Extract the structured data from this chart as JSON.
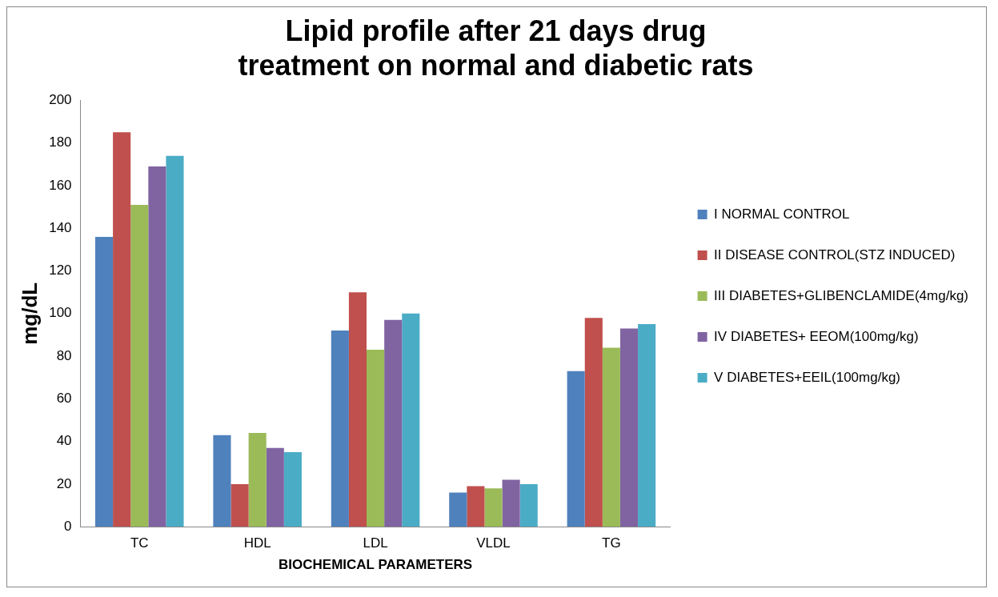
{
  "chart_data": {
    "type": "bar",
    "title": "Lipid profile after 21 days drug treatment on normal and diabetic rats",
    "xlabel": "BIOCHEMICAL PARAMETERS",
    "ylabel": "mg/dL",
    "categories": [
      "TC",
      "HDL",
      "LDL",
      "VLDL",
      "TG"
    ],
    "series": [
      {
        "name": "I NORMAL CONTROL",
        "color": "#4f81bd",
        "values": [
          136,
          43,
          92,
          16,
          73
        ]
      },
      {
        "name": "II DISEASE CONTROL(STZ INDUCED)",
        "color": "#c0504d",
        "values": [
          185,
          20,
          110,
          19,
          98
        ]
      },
      {
        "name": "III DIABETES+GLIBENCLAMIDE(4mg/kg)",
        "color": "#9bbb59",
        "values": [
          151,
          44,
          83,
          18,
          84
        ]
      },
      {
        "name": "IV DIABETES+ EEOM(100mg/kg)",
        "color": "#8064a2",
        "values": [
          169,
          37,
          97,
          22,
          93
        ]
      },
      {
        "name": "V DIABETES+EEIL(100mg/kg)",
        "color": "#4bacc6",
        "values": [
          174,
          35,
          100,
          20,
          95
        ]
      }
    ],
    "ylim": [
      0,
      200
    ],
    "yticks": [
      0,
      20,
      40,
      60,
      80,
      100,
      120,
      140,
      160,
      180,
      200
    ],
    "grid": false,
    "legend": "right"
  }
}
